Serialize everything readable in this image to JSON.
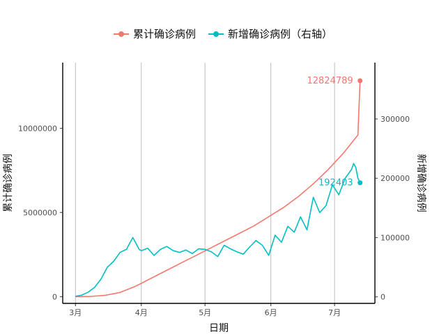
{
  "chart_data": {
    "type": "line",
    "legend": {
      "position": "top",
      "items": [
        "累计确诊病例",
        "新增确诊病例（右轴）"
      ]
    },
    "xlabel": "日期",
    "ylabel_left": "累计确诊病例",
    "ylabel_right": "新增确诊病例",
    "x_ticks": [
      "3月",
      "4月",
      "5月",
      "6月",
      "7月"
    ],
    "x_range": [
      "2020-02-24",
      "2020-07-20"
    ],
    "y_left_ticks": [
      "0",
      "5000000",
      "10000000"
    ],
    "y_left_range": [
      -400000,
      13900000
    ],
    "y_right_ticks": [
      "0",
      "100000",
      "200000",
      "300000"
    ],
    "y_right_range": [
      -11000,
      395000
    ],
    "grid": "vertical major lines only",
    "series": [
      {
        "name": "累计确诊病例",
        "axis": "left",
        "color": "#F8766D",
        "end_label": "12824789",
        "x": [
          "2020-03-01",
          "2020-03-08",
          "2020-03-15",
          "2020-03-22",
          "2020-03-29",
          "2020-04-05",
          "2020-04-12",
          "2020-04-19",
          "2020-04-26",
          "2020-05-03",
          "2020-05-10",
          "2020-05-17",
          "2020-05-24",
          "2020-05-31",
          "2020-06-07",
          "2020-06-14",
          "2020-06-21",
          "2020-06-28",
          "2020-07-05",
          "2020-07-12",
          "2020-07-13"
        ],
        "values": [
          0,
          15000,
          80000,
          250000,
          600000,
          1050000,
          1500000,
          1950000,
          2400000,
          2850000,
          3300000,
          3750000,
          4200000,
          4750000,
          5300000,
          5950000,
          6700000,
          7550000,
          8500000,
          9600000,
          12824789
        ]
      },
      {
        "name": "新增确诊病例（右轴）",
        "axis": "right",
        "color": "#00BFC4",
        "end_label": "192403",
        "x": [
          "2020-03-01",
          "2020-03-04",
          "2020-03-07",
          "2020-03-10",
          "2020-03-13",
          "2020-03-16",
          "2020-03-19",
          "2020-03-22",
          "2020-03-25",
          "2020-03-28",
          "2020-03-31",
          "2020-04-01",
          "2020-04-04",
          "2020-04-07",
          "2020-04-10",
          "2020-04-13",
          "2020-04-16",
          "2020-04-19",
          "2020-04-22",
          "2020-04-25",
          "2020-04-28",
          "2020-05-01",
          "2020-05-04",
          "2020-05-07",
          "2020-05-10",
          "2020-05-13",
          "2020-05-16",
          "2020-05-19",
          "2020-05-22",
          "2020-05-25",
          "2020-05-28",
          "2020-05-31",
          "2020-06-03",
          "2020-06-06",
          "2020-06-09",
          "2020-06-12",
          "2020-06-15",
          "2020-06-18",
          "2020-06-21",
          "2020-06-24",
          "2020-06-27",
          "2020-06-30",
          "2020-07-03",
          "2020-07-06",
          "2020-07-09",
          "2020-07-10",
          "2020-07-11",
          "2020-07-12",
          "2020-07-13"
        ],
        "values": [
          1000,
          3000,
          8000,
          16000,
          30000,
          50000,
          60000,
          75000,
          80000,
          100000,
          80000,
          78000,
          82000,
          70000,
          80000,
          85000,
          78000,
          75000,
          79000,
          73000,
          81000,
          80000,
          76000,
          68000,
          87000,
          81000,
          76000,
          72000,
          84000,
          95000,
          87000,
          70000,
          104000,
          92000,
          119000,
          109000,
          135000,
          113000,
          168000,
          142000,
          154000,
          189000,
          172000,
          200000,
          215000,
          225000,
          218000,
          200000,
          192403
        ]
      }
    ]
  }
}
